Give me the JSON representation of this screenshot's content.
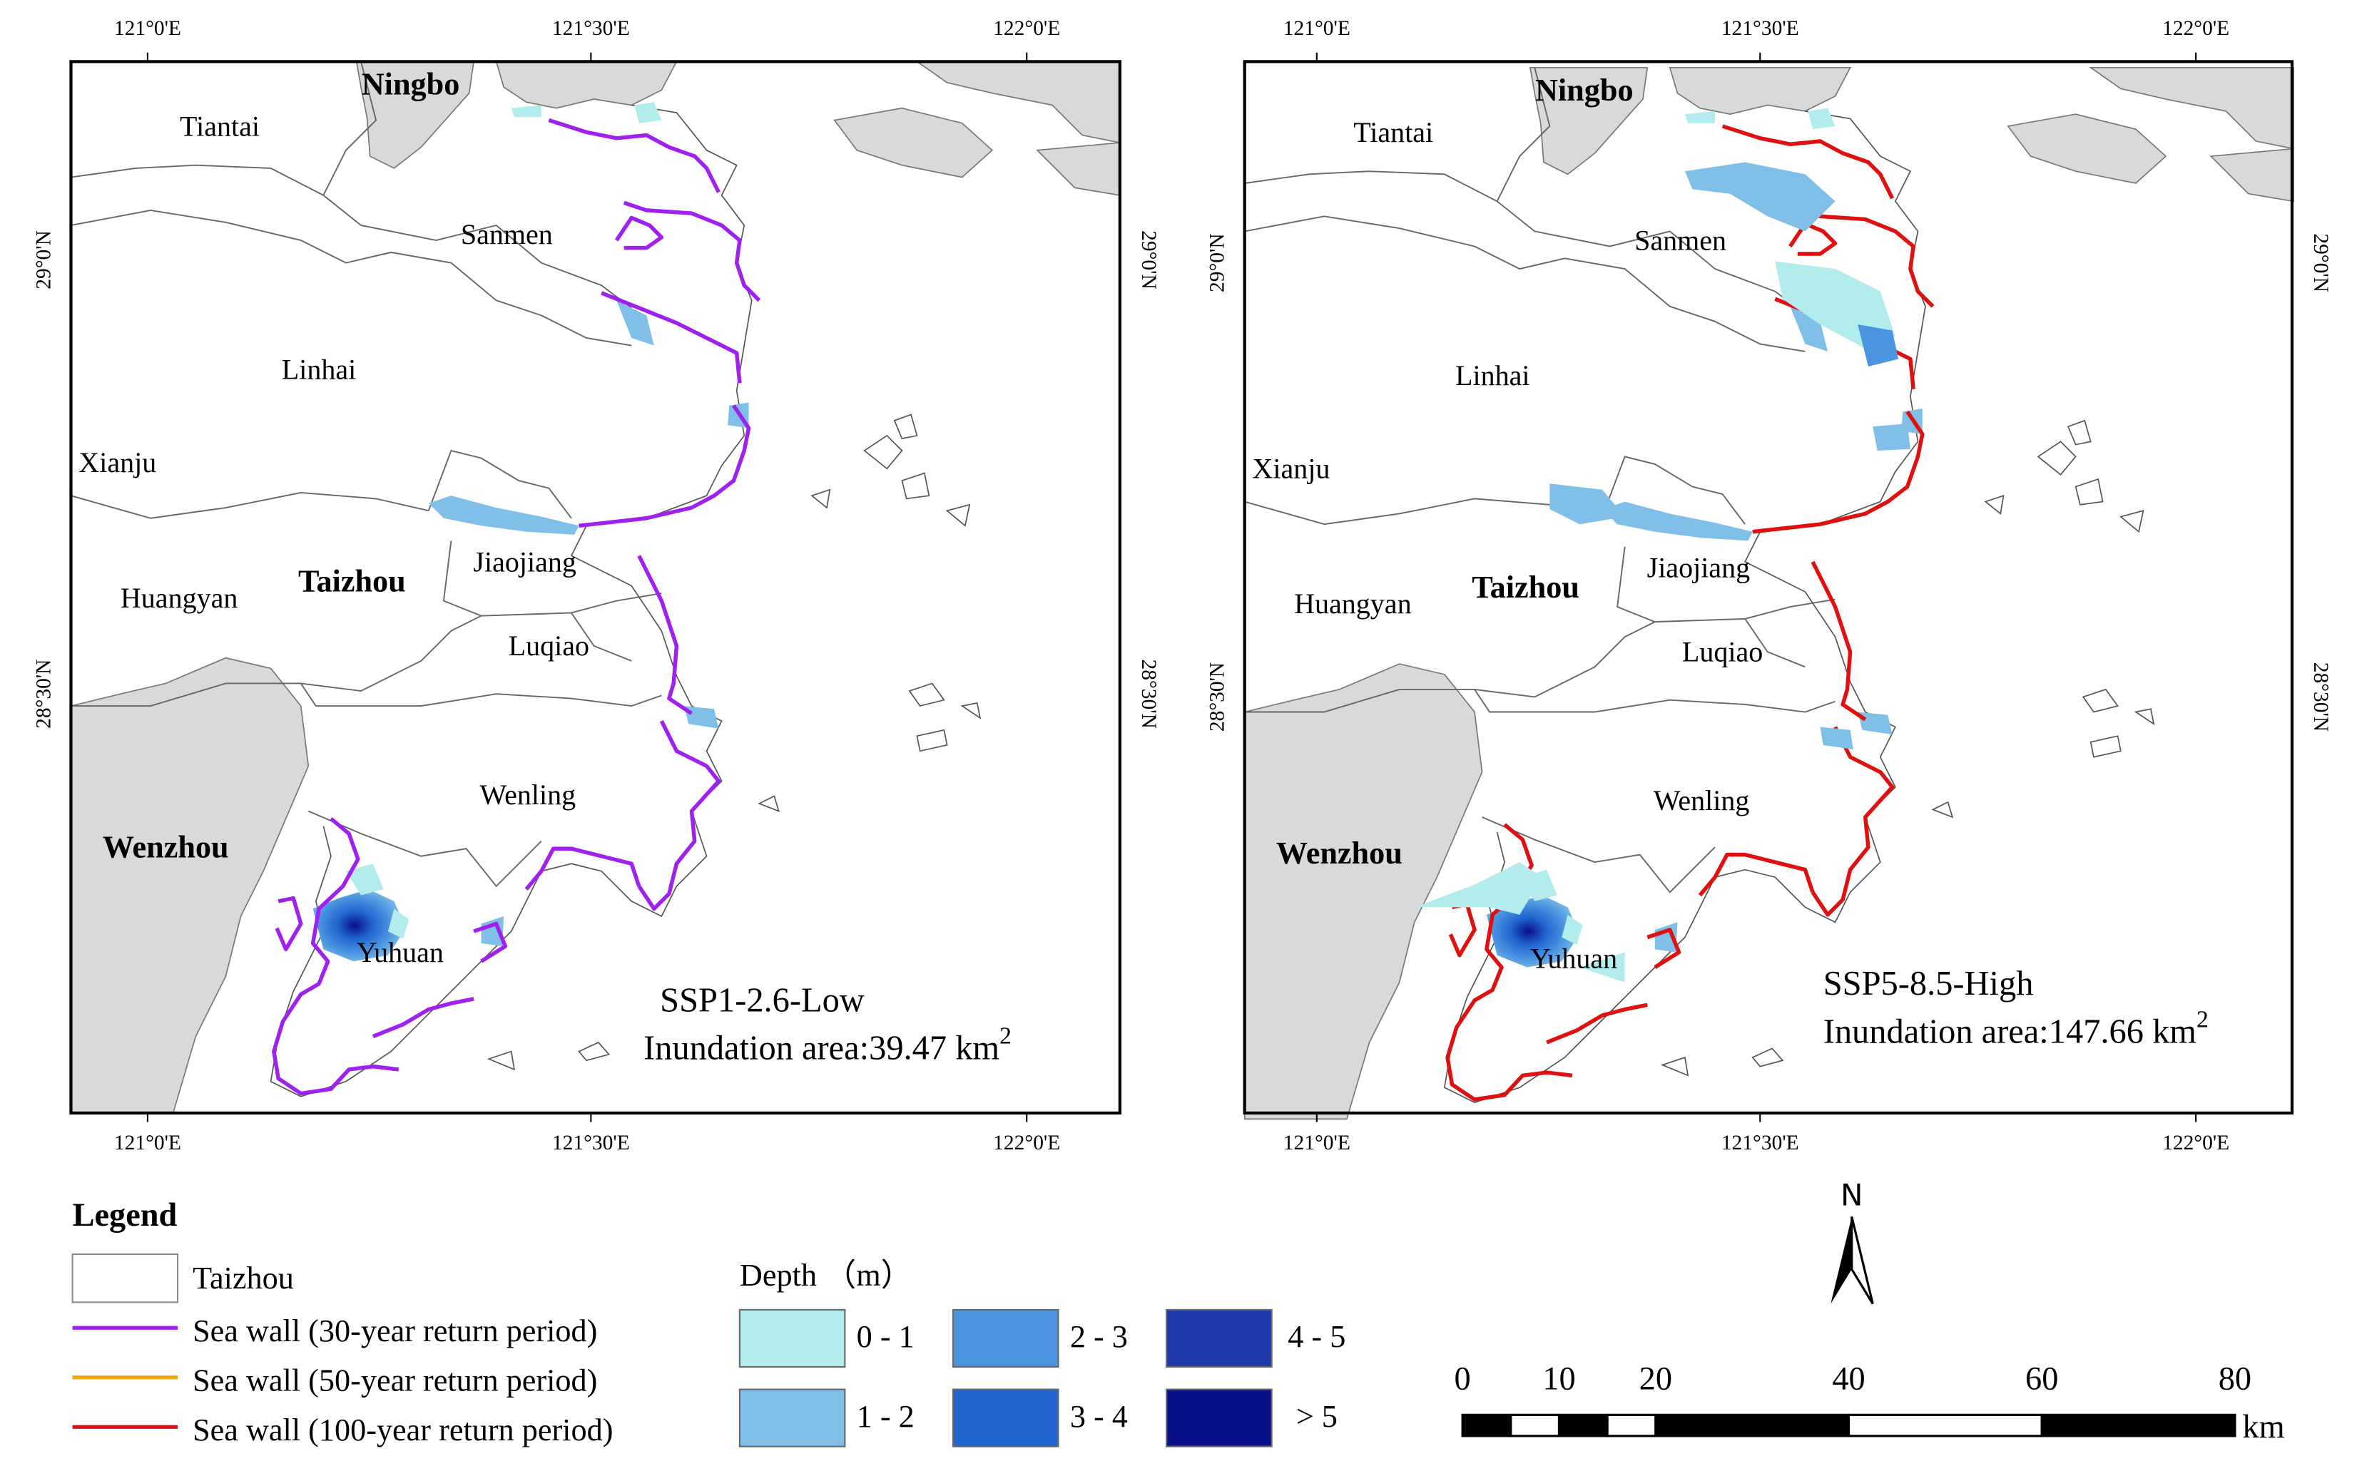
{
  "graticule": {
    "lon": [
      "121°0'E",
      "121°30'E",
      "122°0'E"
    ],
    "lat": [
      "29°0'N",
      "28°30'N"
    ]
  },
  "places": [
    "Ningbo",
    "Tiantai",
    "Sanmen",
    "Linhai",
    "Xianju",
    "Taizhou",
    "Jiaojiang",
    "Huangyan",
    "Luqiao",
    "Wenling",
    "Wenzhou",
    "Yuhuan"
  ],
  "panels": [
    {
      "scenario": "SSP1-2.6-Low",
      "area": "Inundation area:39.47 km",
      "area_exp": "2",
      "sea_wall_color": "#a020f0"
    },
    {
      "scenario": "SSP5-8.5-High",
      "area": "Inundation area:147.66 km",
      "area_exp": "2",
      "sea_wall_color": "#e01010"
    }
  ],
  "legend": {
    "title": "Legend",
    "region": "Taizhou",
    "walls": [
      {
        "label": "Sea wall (30-year return period)",
        "color": "#a020f0"
      },
      {
        "label": "Sea wall (50-year return period)",
        "color": "#f5a800"
      },
      {
        "label": "Sea wall (100-year return period)",
        "color": "#e01010"
      }
    ],
    "depth_title": "Depth （m）",
    "depth": [
      {
        "label": "0 - 1",
        "color": "#b3ecec"
      },
      {
        "label": "1 - 2",
        "color": "#80bfe8"
      },
      {
        "label": "2 - 3",
        "color": "#4a94e0"
      },
      {
        "label": "3 - 4",
        "color": "#2166d0"
      },
      {
        "label": "4 - 5",
        "color": "#1e3aaa"
      },
      {
        "label": "> 5",
        "color": "#08108a"
      }
    ]
  },
  "north": "N",
  "scale": {
    "ticks": [
      0,
      10,
      20,
      40,
      60,
      80
    ],
    "unit": "km"
  }
}
